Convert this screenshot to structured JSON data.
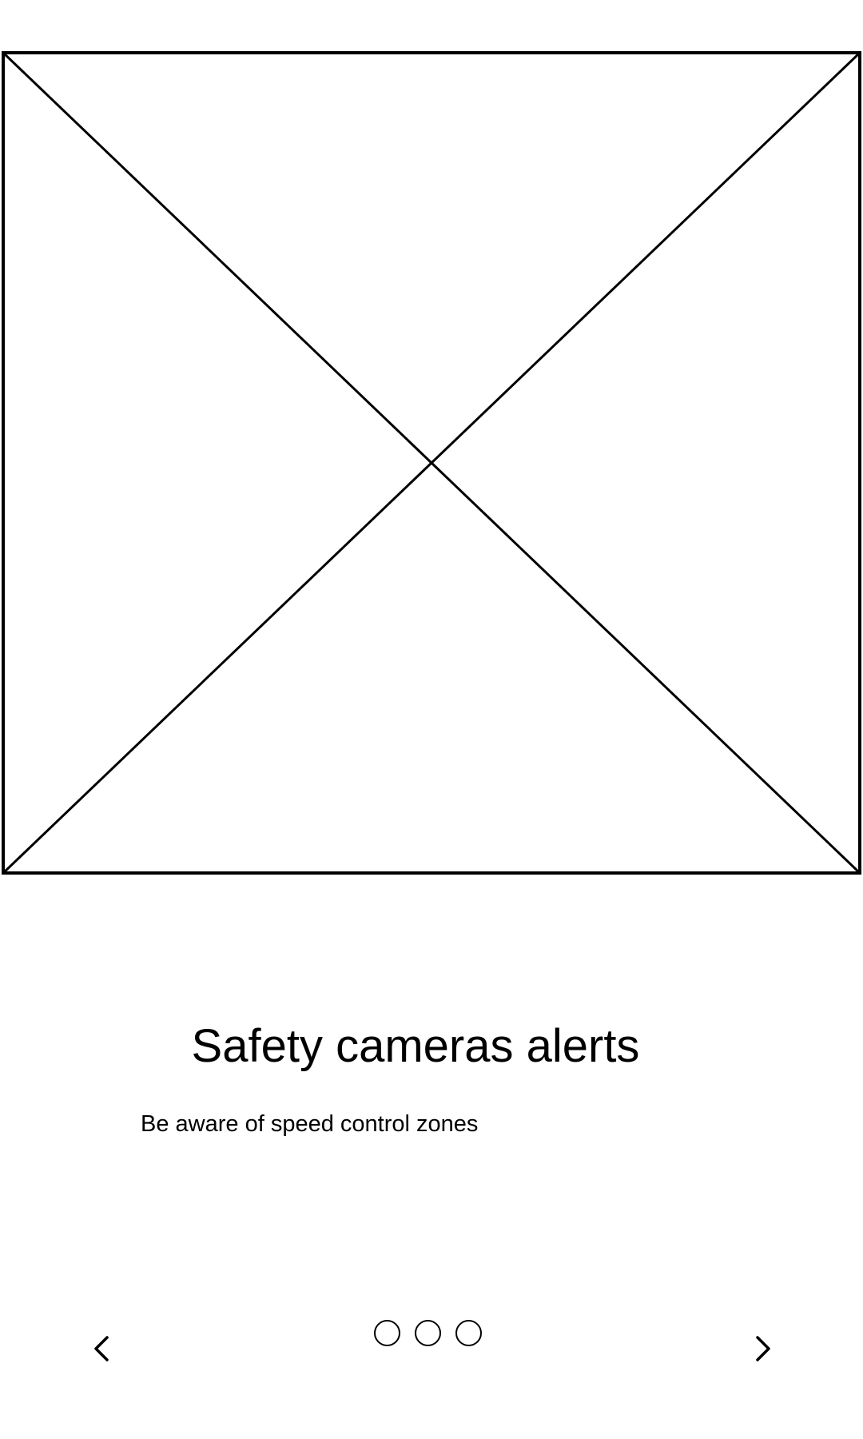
{
  "hero": {
    "icon": "image-placeholder-icon"
  },
  "content": {
    "title": "Safety cameras alerts",
    "subtitle": "Be aware of speed control zones"
  },
  "navigation": {
    "prev_icon": "chevron-left-icon",
    "next_icon": "chevron-right-icon",
    "pages": [
      {
        "active": false
      },
      {
        "active": false
      },
      {
        "active": false
      }
    ]
  },
  "colors": {
    "background": "#ffffff",
    "stroke": "#000000"
  }
}
